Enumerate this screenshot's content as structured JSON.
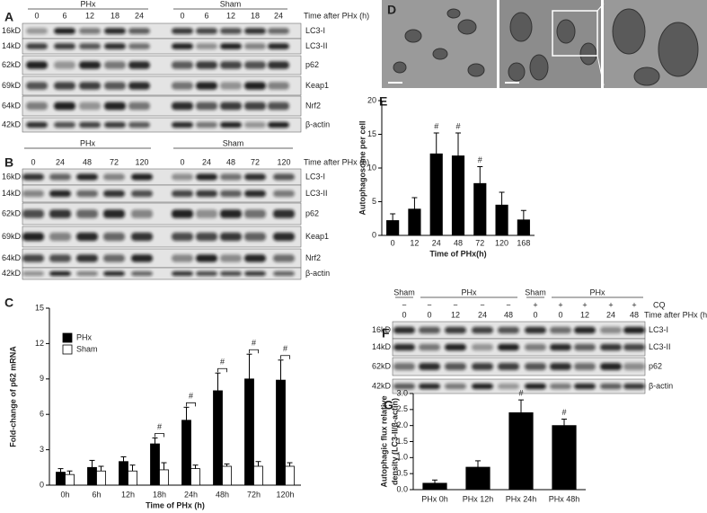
{
  "blots": [
    {
      "panel": "A",
      "groups": [
        "PHx",
        "Sham"
      ],
      "lanes": [
        "0",
        "6",
        "12",
        "18",
        "24",
        "0",
        "6",
        "12",
        "18",
        "24"
      ],
      "time_label": "Time after PHx (h)",
      "rows": [
        {
          "size": "16kD",
          "name": "LC3-I"
        },
        {
          "size": "14kD",
          "name": "LC3-II"
        },
        {
          "size": "62kD",
          "name": "p62"
        },
        {
          "size": "69kD",
          "name": "Keap1"
        },
        {
          "size": "64kD",
          "name": "Nrf2"
        },
        {
          "size": "42kD",
          "name": "β-actin"
        }
      ]
    },
    {
      "panel": "B",
      "groups": [
        "PHx",
        "Sham"
      ],
      "lanes": [
        "0",
        "24",
        "48",
        "72",
        "120",
        "0",
        "24",
        "48",
        "72",
        "120"
      ],
      "time_label": "Time after PHx (h)",
      "rows": [
        {
          "size": "16kD",
          "name": "LC3-I"
        },
        {
          "size": "14kD",
          "name": "LC3-II"
        },
        {
          "size": "62kD",
          "name": "p62"
        },
        {
          "size": "69kD",
          "name": "Keap1"
        },
        {
          "size": "64kD",
          "name": "Nrf2"
        },
        {
          "size": "42kD",
          "name": "β-actin"
        }
      ]
    },
    {
      "panel": "F",
      "groups": [
        "Sham",
        "PHx",
        "Sham",
        "PHx"
      ],
      "treatment_label": "CQ",
      "treatment": [
        "−",
        "−",
        "−",
        "−",
        "−",
        "+",
        "+",
        "+",
        "+",
        "+"
      ],
      "lanes": [
        "0",
        "0",
        "12",
        "24",
        "48",
        "0",
        "0",
        "12",
        "24",
        "48"
      ],
      "time_label": "Time after PHx (h)",
      "rows": [
        {
          "size": "16kD",
          "name": "LC3-I"
        },
        {
          "size": "14kD",
          "name": "LC3-II"
        },
        {
          "size": "62kD",
          "name": "p62"
        },
        {
          "size": "42kD",
          "name": "β-actin"
        }
      ]
    }
  ],
  "em": {
    "panel": "D"
  },
  "chart_data": [
    {
      "type": "bar",
      "panel": "C",
      "ylabel": "Fold-change of p62 mRNA",
      "xlabel": "Time of PHx (h)",
      "categories": [
        "0h",
        "6h",
        "12h",
        "18h",
        "24h",
        "48h",
        "72h",
        "120h"
      ],
      "series": [
        {
          "name": "PHx",
          "color": "#000000",
          "values": [
            1.1,
            1.5,
            2.0,
            3.5,
            5.5,
            8.0,
            9.0,
            8.9
          ],
          "errors": [
            0.3,
            0.6,
            0.4,
            0.5,
            1.1,
            1.5,
            2.1,
            1.7
          ]
        },
        {
          "name": "Sham",
          "color": "#ffffff",
          "values": [
            0.9,
            1.2,
            1.2,
            1.3,
            1.4,
            1.6,
            1.6,
            1.6
          ],
          "errors": [
            0.3,
            0.4,
            0.5,
            0.6,
            0.3,
            0.2,
            0.4,
            0.3
          ]
        }
      ],
      "markers": [
        null,
        null,
        null,
        "#",
        "#",
        "#",
        "#",
        "#"
      ],
      "ylim": [
        0,
        15
      ],
      "yticks": [
        0,
        3,
        6,
        9,
        12,
        15
      ],
      "legend": "upper left"
    },
    {
      "type": "bar",
      "panel": "E",
      "ylabel": "Autophagosome per cell",
      "xlabel": "Time of PHx(h)",
      "categories": [
        "0",
        "12",
        "24",
        "48",
        "72",
        "120",
        "168"
      ],
      "values": [
        2.2,
        3.9,
        12.1,
        11.8,
        7.7,
        4.5,
        2.3
      ],
      "errors": [
        1.0,
        1.7,
        3.1,
        3.4,
        2.5,
        1.9,
        1.4
      ],
      "color": "#000000",
      "markers": [
        null,
        null,
        "#",
        "#",
        "#",
        null,
        null
      ],
      "ylim": [
        0,
        20
      ],
      "yticks": [
        0,
        5,
        10,
        15,
        20
      ]
    },
    {
      "type": "bar",
      "panel": "G",
      "ylabel": [
        "Autophagic flux relative",
        "density (LC3-II/β-actin)"
      ],
      "categories": [
        "PHx 0h",
        "PHx 12h",
        "PHx 24h",
        "PHx 48h"
      ],
      "values": [
        0.2,
        0.7,
        2.4,
        2.0
      ],
      "errors": [
        0.1,
        0.2,
        0.4,
        0.2
      ],
      "color": "#000000",
      "markers": [
        null,
        null,
        "#",
        "#"
      ],
      "ylim": [
        0,
        3
      ],
      "yticks": [
        {
          "value": 0,
          "label": "0.0"
        },
        {
          "value": 0.5,
          "label": "0.5"
        },
        {
          "value": 1,
          "label": "1.0"
        },
        {
          "value": 1.5,
          "label": "1.5"
        },
        {
          "value": 2,
          "label": "2.0"
        },
        {
          "value": 2.5,
          "label": "2.5"
        },
        {
          "value": 3,
          "label": "3.0"
        }
      ]
    }
  ]
}
